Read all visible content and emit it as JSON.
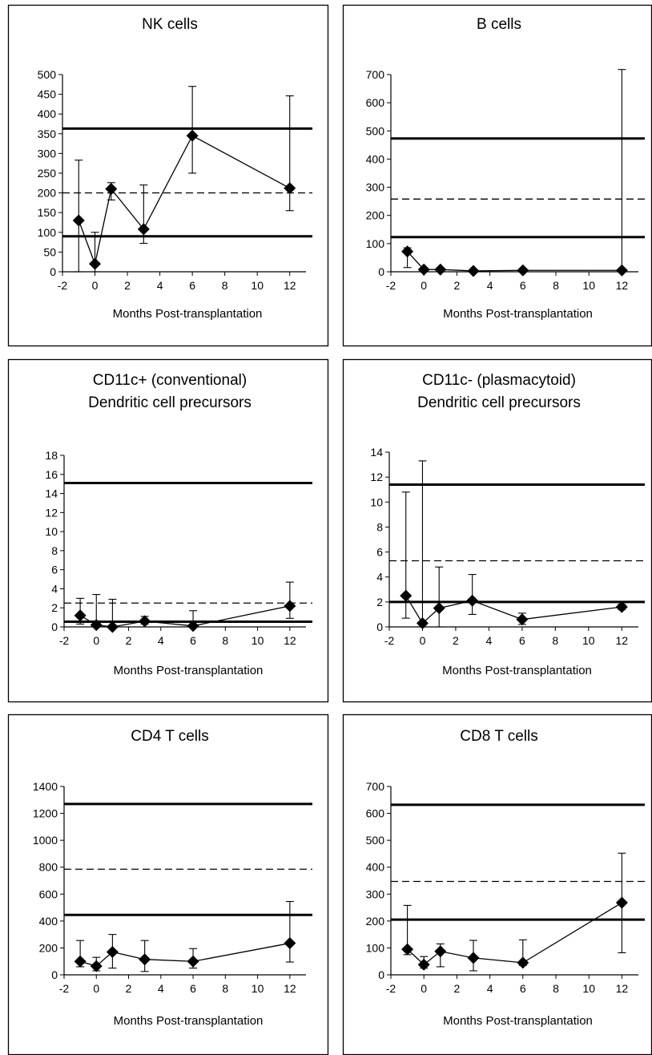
{
  "chart_data": [
    {
      "type": "line",
      "title": [
        "NK cells"
      ],
      "xlabel": "Months Post-transplantation",
      "xlim": [
        -2,
        13
      ],
      "xticks": [
        -2,
        0,
        2,
        4,
        6,
        8,
        10,
        12
      ],
      "ylim": [
        0,
        500
      ],
      "yticks": [
        0,
        50,
        100,
        150,
        200,
        250,
        300,
        350,
        400,
        450,
        500
      ],
      "reference_lines": [
        {
          "style": "solid",
          "y": 363
        },
        {
          "style": "dashed",
          "y": 200
        },
        {
          "style": "solid",
          "y": 90
        }
      ],
      "series": [
        {
          "x": [
            -1,
            0,
            1,
            3,
            6,
            12
          ],
          "y": [
            130,
            20,
            210,
            108,
            345,
            212
          ],
          "err_low": [
            0,
            0,
            182,
            72,
            250,
            155
          ],
          "err_high": [
            283,
            100,
            226,
            220,
            470,
            446
          ]
        }
      ]
    },
    {
      "type": "line",
      "title": [
        "B cells"
      ],
      "xlabel": "Months Post-transplantation",
      "xlim": [
        -2,
        13
      ],
      "xticks": [
        -2,
        0,
        2,
        4,
        6,
        8,
        10,
        12
      ],
      "ylim": [
        0,
        700
      ],
      "yticks": [
        0,
        100,
        200,
        300,
        400,
        500,
        600,
        700
      ],
      "reference_lines": [
        {
          "style": "solid",
          "y": 473
        },
        {
          "style": "dashed",
          "y": 258
        },
        {
          "style": "solid",
          "y": 123
        }
      ],
      "series": [
        {
          "x": [
            -1,
            0,
            1,
            3,
            6,
            12
          ],
          "y": [
            72,
            8,
            8,
            3,
            5,
            5
          ],
          "err_low": [
            15,
            0,
            0,
            0,
            0,
            0
          ],
          "err_high": [
            85,
            12,
            12,
            5,
            8,
            718
          ]
        }
      ]
    },
    {
      "type": "line",
      "title": [
        "CD11c+ (conventional)",
        "Dendritic cell precursors"
      ],
      "xlabel": "Months Post-transplantation",
      "xlim": [
        -2,
        13
      ],
      "xticks": [
        -2,
        0,
        2,
        4,
        6,
        8,
        10,
        12
      ],
      "ylim": [
        0,
        18
      ],
      "yticks": [
        0,
        2,
        4,
        6,
        8,
        10,
        12,
        14,
        16,
        18
      ],
      "reference_lines": [
        {
          "style": "solid",
          "y": 15.1
        },
        {
          "style": "dashed",
          "y": 2.5
        },
        {
          "style": "solid",
          "y": 0.55
        }
      ],
      "series": [
        {
          "x": [
            -1,
            0,
            1,
            3,
            6,
            12
          ],
          "y": [
            1.2,
            0.2,
            0.0,
            0.6,
            0.1,
            2.2
          ],
          "err_low": [
            0.3,
            0,
            0,
            0.3,
            0,
            0.9
          ],
          "err_high": [
            3.0,
            3.4,
            2.9,
            1.1,
            1.7,
            4.7
          ]
        }
      ]
    },
    {
      "type": "line",
      "title": [
        "CD11c- (plasmacytoid)",
        "Dendritic cell precursors"
      ],
      "xlabel": "Months Post-transplantation",
      "xlim": [
        -2,
        13
      ],
      "xticks": [
        -2,
        0,
        2,
        4,
        6,
        8,
        10,
        12
      ],
      "ylim": [
        0,
        14
      ],
      "yticks": [
        0,
        2,
        4,
        6,
        8,
        10,
        12,
        14
      ],
      "reference_lines": [
        {
          "style": "solid",
          "y": 11.4
        },
        {
          "style": "dashed",
          "y": 5.3
        },
        {
          "style": "solid",
          "y": 2.0
        }
      ],
      "series": [
        {
          "x": [
            -1,
            0,
            1,
            3,
            6,
            12
          ],
          "y": [
            2.5,
            0.3,
            1.5,
            2.1,
            0.6,
            1.6
          ],
          "err_low": [
            0.7,
            0,
            0,
            1.0,
            0.2,
            1.4
          ],
          "err_high": [
            10.8,
            13.3,
            4.8,
            4.2,
            1.1,
            1.8
          ]
        }
      ]
    },
    {
      "type": "line",
      "title": [
        "CD4 T cells"
      ],
      "xlabel": "Months Post-transplantation",
      "xlim": [
        -2,
        13
      ],
      "xticks": [
        -2,
        0,
        2,
        4,
        6,
        8,
        10,
        12
      ],
      "ylim": [
        0,
        1400
      ],
      "yticks": [
        0,
        200,
        400,
        600,
        800,
        1000,
        1200,
        1400
      ],
      "reference_lines": [
        {
          "style": "solid",
          "y": 1270
        },
        {
          "style": "dashed",
          "y": 785
        },
        {
          "style": "solid",
          "y": 445
        }
      ],
      "series": [
        {
          "x": [
            -1,
            0,
            1,
            3,
            6,
            12
          ],
          "y": [
            100,
            65,
            170,
            115,
            100,
            235
          ],
          "err_low": [
            60,
            30,
            50,
            25,
            50,
            95
          ],
          "err_high": [
            255,
            130,
            300,
            255,
            195,
            545
          ]
        }
      ]
    },
    {
      "type": "line",
      "title": [
        "CD8 T cells"
      ],
      "xlabel": "Months Post-transplantation",
      "xlim": [
        -2,
        13
      ],
      "xticks": [
        -2,
        0,
        2,
        4,
        6,
        8,
        10,
        12
      ],
      "ylim": [
        0,
        700
      ],
      "yticks": [
        0,
        100,
        200,
        300,
        400,
        500,
        600,
        700
      ],
      "reference_lines": [
        {
          "style": "solid",
          "y": 632
        },
        {
          "style": "dashed",
          "y": 347
        },
        {
          "style": "solid",
          "y": 205
        }
      ],
      "series": [
        {
          "x": [
            -1,
            0,
            1,
            3,
            6,
            12
          ],
          "y": [
            95,
            38,
            87,
            63,
            45,
            268
          ],
          "err_low": [
            75,
            25,
            30,
            15,
            35,
            82
          ],
          "err_high": [
            258,
            68,
            115,
            128,
            130,
            452
          ]
        }
      ]
    }
  ]
}
